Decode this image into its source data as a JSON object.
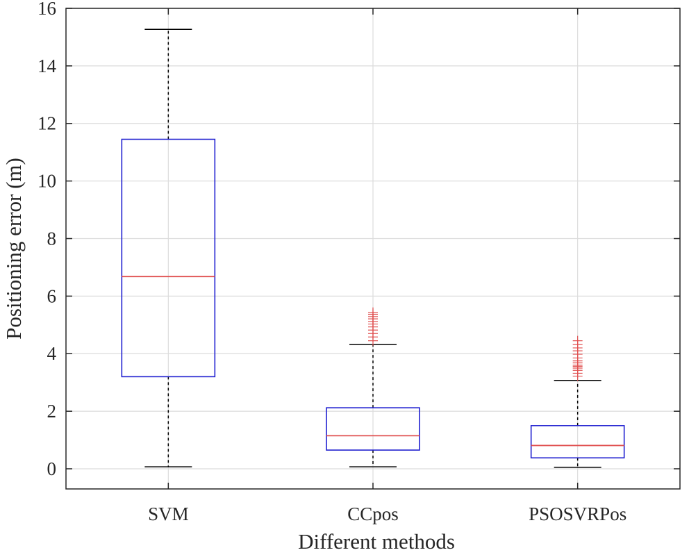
{
  "chart_data": {
    "type": "box",
    "title": "",
    "xlabel": "Different methods",
    "ylabel": "Positioning error (m)",
    "ylim": [
      -0.7,
      16
    ],
    "yticks": [
      0,
      2,
      4,
      6,
      8,
      10,
      12,
      14,
      16
    ],
    "grid": true,
    "categories": [
      "SVM",
      "CCpos",
      "PSOSVRPos"
    ],
    "boxes": [
      {
        "name": "SVM",
        "whisker_low": 0.07,
        "q1": 3.2,
        "median": 6.68,
        "q3": 11.45,
        "whisker_high": 15.27,
        "outliers": []
      },
      {
        "name": "CCpos",
        "whisker_low": 0.07,
        "q1": 0.65,
        "median": 1.15,
        "q3": 2.12,
        "whisker_high": 4.32,
        "outliers": [
          4.45,
          4.58,
          4.7,
          4.82,
          4.93,
          5.03,
          5.12,
          5.21,
          5.29,
          5.37,
          5.44
        ]
      },
      {
        "name": "PSOSVRPos",
        "whisker_low": 0.05,
        "q1": 0.38,
        "median": 0.81,
        "q3": 1.5,
        "whisker_high": 3.07,
        "outliers": [
          3.22,
          3.32,
          3.42,
          3.5,
          3.56,
          3.6,
          3.68,
          3.75,
          3.85,
          3.98,
          4.1,
          4.2,
          4.32,
          4.45
        ]
      }
    ],
    "colors": {
      "box": "#2020d0",
      "median": "#e05050",
      "outlier": "#e05050",
      "whisker": "#000000",
      "grid": "#dcdcdc",
      "axis": "#262626"
    }
  }
}
